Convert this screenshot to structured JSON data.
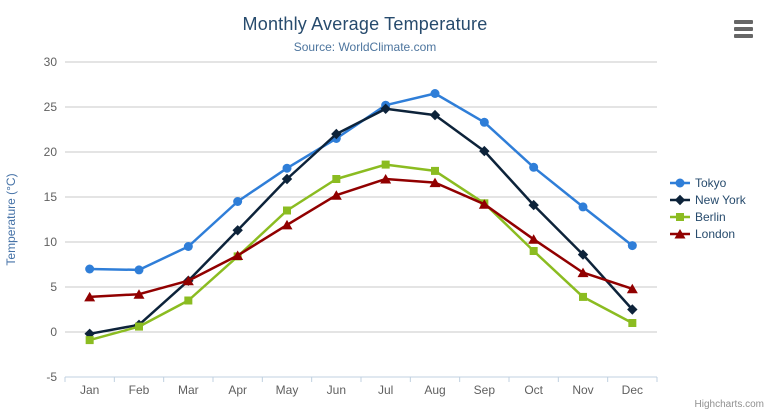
{
  "header": {
    "title": "Monthly Average Temperature",
    "subtitle": "Source: WorldClimate.com"
  },
  "credit_label": "Highcharts.com",
  "icons": {
    "menu": "hamburger-menu"
  },
  "colors": {
    "grid": "#c8c8c8",
    "axis_line": "#c0d0e0",
    "tick": "#c0d0e0",
    "axis_label": "#606060",
    "yaxis_title": "#4572a7",
    "title": "#274b6d",
    "subtitle": "#4d759e",
    "legend_text": "#274b6d",
    "credit": "#909090"
  },
  "chart_data": {
    "type": "line",
    "title": "Monthly Average Temperature",
    "subtitle": "Source: WorldClimate.com",
    "xlabel": "",
    "ylabel": "Temperature (°C)",
    "ylim": [
      -5,
      30
    ],
    "yticks": [
      30,
      25,
      20,
      15,
      10,
      5,
      0,
      -5
    ],
    "grid": true,
    "legend_position": "right",
    "categories": [
      "Jan",
      "Feb",
      "Mar",
      "Apr",
      "May",
      "Jun",
      "Jul",
      "Aug",
      "Sep",
      "Oct",
      "Nov",
      "Dec"
    ],
    "series": [
      {
        "name": "Tokyo",
        "color": "#2f7ed8",
        "marker": "circle",
        "values": [
          7.0,
          6.9,
          9.5,
          14.5,
          18.2,
          21.5,
          25.2,
          26.5,
          23.3,
          18.3,
          13.9,
          9.6
        ]
      },
      {
        "name": "New York",
        "color": "#0d233a",
        "marker": "diamond",
        "values": [
          -0.2,
          0.8,
          5.7,
          11.3,
          17.0,
          22.0,
          24.8,
          24.1,
          20.1,
          14.1,
          8.6,
          2.5
        ]
      },
      {
        "name": "Berlin",
        "color": "#8bbc21",
        "marker": "square",
        "values": [
          -0.9,
          0.6,
          3.5,
          8.4,
          13.5,
          17.0,
          18.6,
          17.9,
          14.3,
          9.0,
          3.9,
          1.0
        ]
      },
      {
        "name": "London",
        "color": "#910000",
        "marker": "triangle",
        "values": [
          3.9,
          4.2,
          5.7,
          8.5,
          11.9,
          15.2,
          17.0,
          16.6,
          14.2,
          10.3,
          6.6,
          4.8
        ]
      }
    ]
  }
}
